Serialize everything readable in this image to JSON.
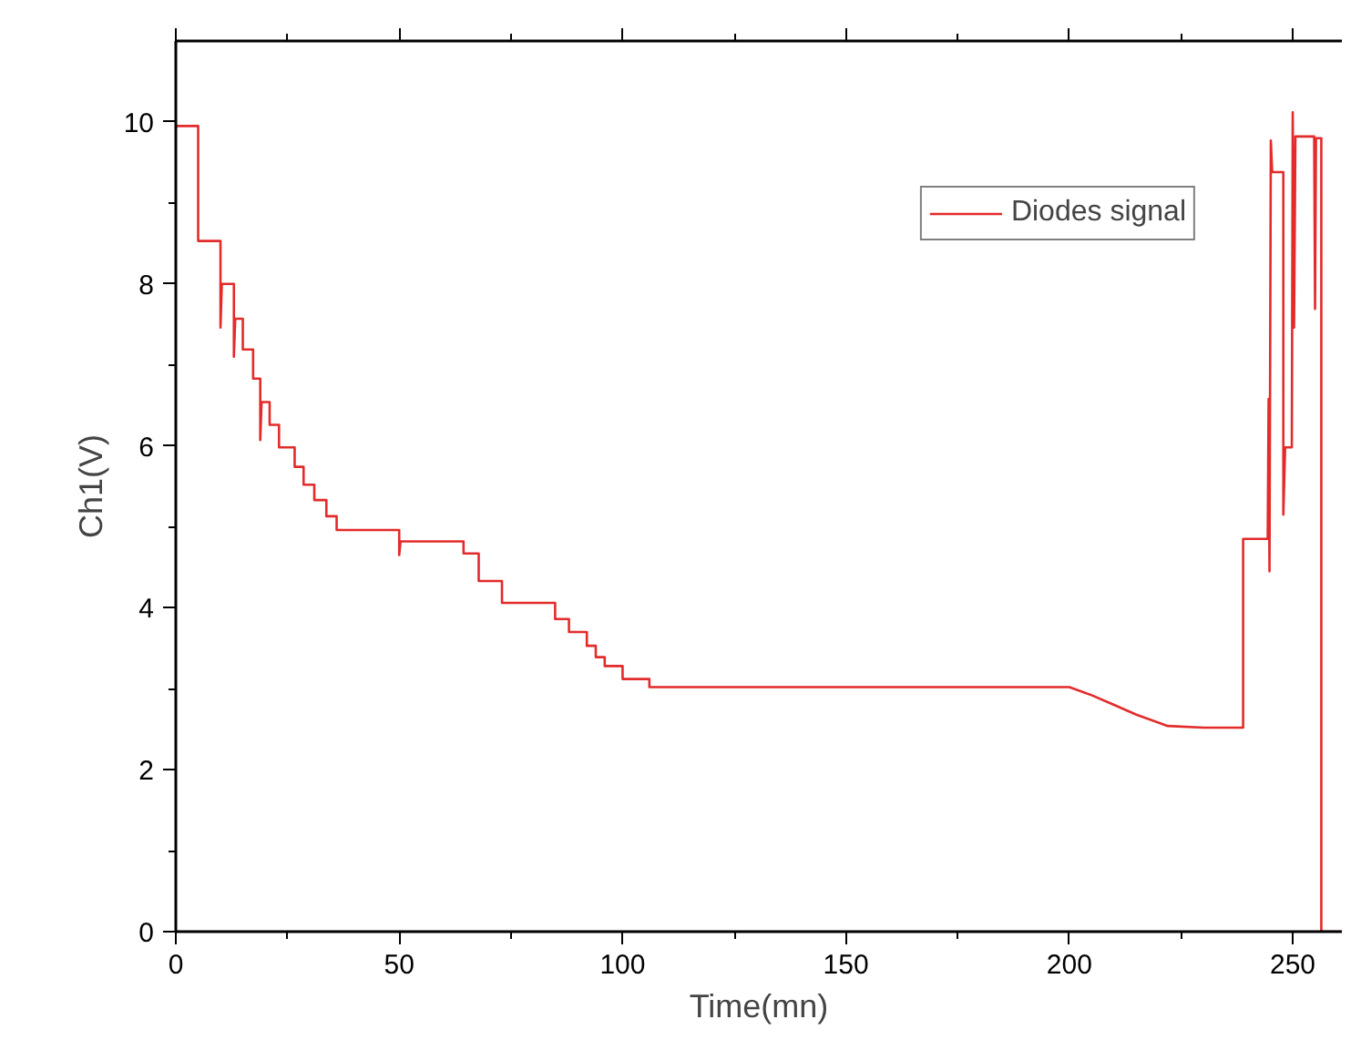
{
  "chart_data": {
    "type": "line",
    "xlabel": "Time(mn)",
    "ylabel": "Ch1(V)",
    "xlim": [
      0,
      261
    ],
    "ylim": [
      0,
      11
    ],
    "xticks": [
      0,
      {
        "value": 25,
        "label": null
      },
      50,
      {
        "value": 75,
        "label": null
      },
      100,
      {
        "value": 125,
        "label": null
      },
      150,
      {
        "value": 175,
        "label": null
      },
      200,
      {
        "value": 225,
        "label": null
      },
      250
    ],
    "yticks": [
      0,
      {
        "value": 1,
        "label": null
      },
      2,
      {
        "value": 3,
        "label": null
      },
      4,
      {
        "value": 5,
        "label": null
      },
      6,
      {
        "value": 7,
        "label": null
      },
      8,
      {
        "value": 9,
        "label": null
      },
      10
    ],
    "grid": false,
    "legend": "top right",
    "marker": "none",
    "line_style": "solid",
    "series": [
      {
        "name": "Diodes signal",
        "color": "#e32b2b",
        "x": [
          0,
          5,
          5,
          10,
          10,
          10.3,
          13,
          13,
          13.3,
          15,
          15,
          17.3,
          17.3,
          18.9,
          18.9,
          19.2,
          21,
          21,
          23.1,
          23.1,
          26.6,
          26.6,
          28.6,
          28.6,
          31,
          31,
          33.7,
          33.7,
          36,
          36,
          50,
          50,
          50.3,
          64.4,
          64.4,
          67.8,
          67.8,
          73,
          73,
          84.9,
          84.9,
          88,
          88,
          92,
          92,
          94,
          94,
          96,
          96,
          100,
          100,
          106,
          106,
          112,
          112,
          200,
          205,
          210,
          215,
          222,
          230,
          238.9,
          238.9,
          244.4,
          244.6,
          244.8,
          245.1,
          245.4,
          247.9,
          247.9,
          248.3,
          249.8,
          250,
          250.3,
          250.6,
          254.8,
          255,
          255.2,
          256.4,
          256.4,
          261
        ],
        "values": [
          9.95,
          9.95,
          8.53,
          8.53,
          7.46,
          8.0,
          8.0,
          7.1,
          7.57,
          7.57,
          7.19,
          7.19,
          6.83,
          6.83,
          6.07,
          6.54,
          6.54,
          6.26,
          6.26,
          5.98,
          5.98,
          5.74,
          5.74,
          5.52,
          5.52,
          5.33,
          5.33,
          5.13,
          5.13,
          4.96,
          4.96,
          4.65,
          4.82,
          4.82,
          4.67,
          4.67,
          4.33,
          4.33,
          4.06,
          4.06,
          3.86,
          3.86,
          3.7,
          3.7,
          3.53,
          3.53,
          3.39,
          3.39,
          3.28,
          3.28,
          3.12,
          3.12,
          3.02,
          3.02,
          3.02,
          3.02,
          2.92,
          2.8,
          2.68,
          2.54,
          2.52,
          2.52,
          4.85,
          4.85,
          6.58,
          4.45,
          9.77,
          9.38,
          9.38,
          5.15,
          5.98,
          5.98,
          10.12,
          7.46,
          9.82,
          9.82,
          7.69,
          9.8,
          9.8,
          0,
          0
        ]
      }
    ]
  }
}
